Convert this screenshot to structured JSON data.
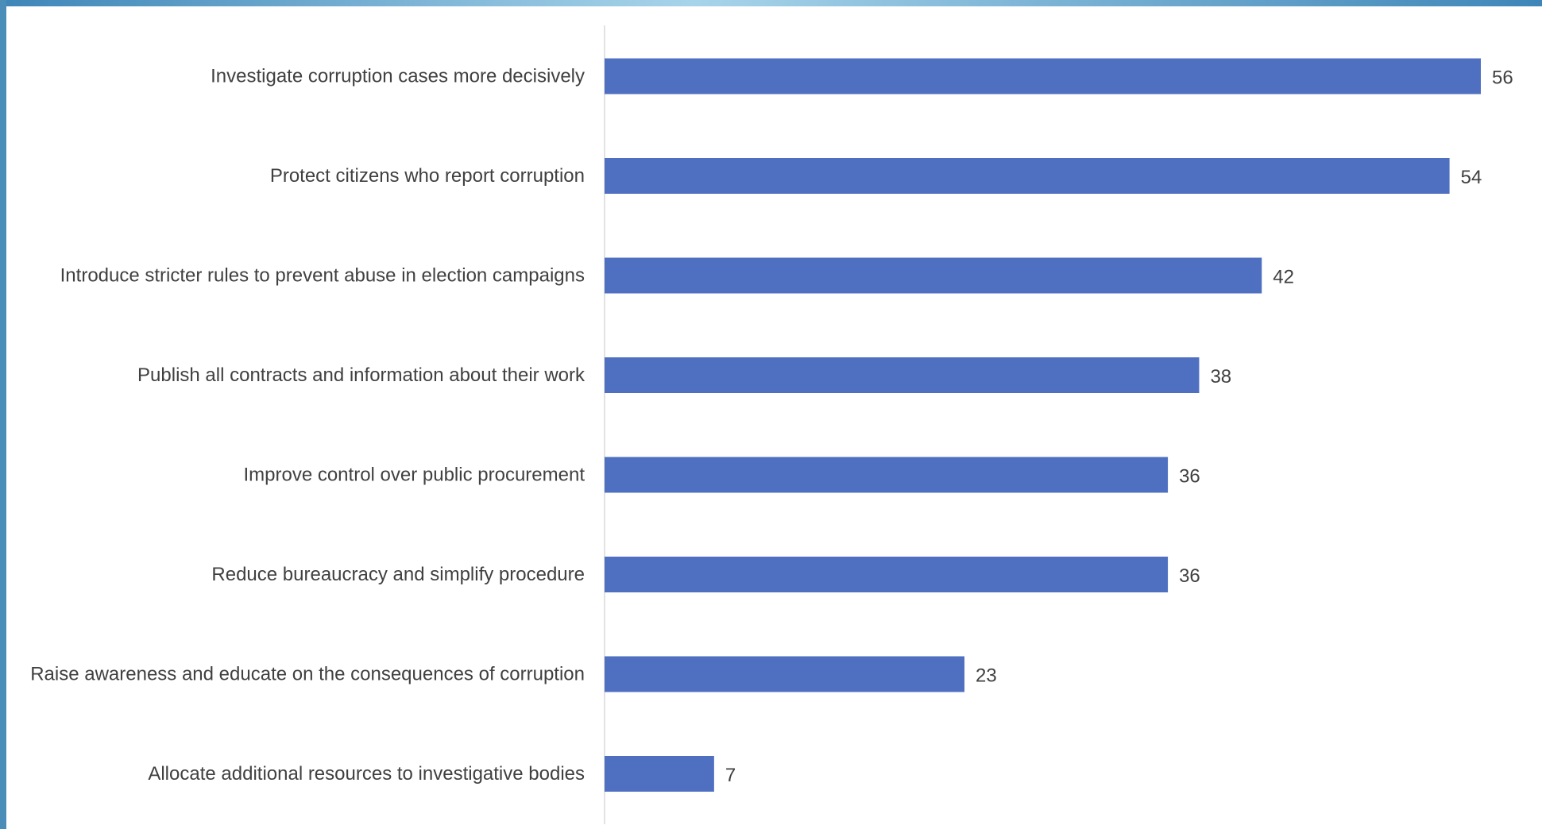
{
  "theme": {
    "bar_color": "#4F6FC0",
    "frame_left_color": "#4A8DB8",
    "frame_top_start": "#3E86B8",
    "frame_top_mid": "#A8D4EA",
    "axis_color": "#D9D9D9",
    "text_color": "#404040"
  },
  "chart_data": {
    "type": "bar",
    "orientation": "horizontal",
    "categories": [
      "Investigate corruption cases more decisively",
      "Protect citizens who report corruption",
      "Introduce stricter rules to prevent abuse in election campaigns",
      "Publish all contracts and information about their work",
      "Improve control over public procurement",
      "Reduce bureaucracy and simplify procedure",
      "Raise awareness and educate on the consequences of corruption",
      "Allocate additional resources to investigative bodies"
    ],
    "values": [
      56,
      54,
      42,
      38,
      36,
      36,
      23,
      7
    ],
    "data_labels": [
      "56",
      "54",
      "42",
      "38",
      "36",
      "36",
      "23",
      "7"
    ],
    "title": "",
    "xlabel": "",
    "ylabel": "",
    "xlim": [
      0,
      56
    ],
    "grid": false,
    "legend": "none"
  }
}
